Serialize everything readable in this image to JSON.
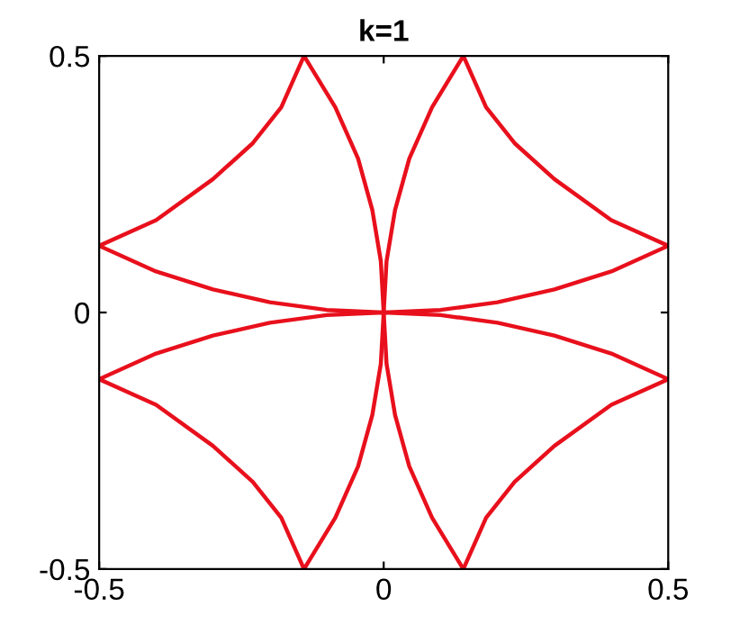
{
  "chart_data": {
    "type": "line",
    "title": "k=1",
    "xlim": [
      -0.5,
      0.5
    ],
    "ylim": [
      -0.5,
      0.5
    ],
    "xticks": [
      -0.5,
      0,
      0.5
    ],
    "yticks": [
      -0.5,
      0,
      0.5
    ],
    "grid": false,
    "legend": false,
    "marker": "none",
    "line_style": "solid",
    "series": [
      {
        "color": "#e8101c",
        "x": [
          0.5,
          0.4,
          0.3,
          0.23,
          0.18,
          0.14,
          0.085,
          0.045,
          0.02,
          0.005,
          0,
          0.005,
          0.02,
          0.045,
          0.085,
          0.14,
          0.18,
          0.23,
          0.3,
          0.4,
          0.5
        ],
        "values": [
          -0.13,
          -0.18,
          -0.26,
          -0.33,
          -0.4,
          -0.5,
          -0.4,
          -0.3,
          -0.2,
          -0.1,
          0,
          0.1,
          0.2,
          0.3,
          0.4,
          0.5,
          0.4,
          0.33,
          0.26,
          0.18,
          0.13
        ]
      },
      {
        "color": "#e8101c",
        "x": [
          -0.5,
          -0.4,
          -0.3,
          -0.23,
          -0.18,
          -0.14,
          -0.085,
          -0.045,
          -0.02,
          -0.005,
          0,
          -0.005,
          -0.02,
          -0.045,
          -0.085,
          -0.14,
          -0.18,
          -0.23,
          -0.3,
          -0.4,
          -0.5
        ],
        "values": [
          -0.13,
          -0.18,
          -0.26,
          -0.33,
          -0.4,
          -0.5,
          -0.4,
          -0.3,
          -0.2,
          -0.1,
          0,
          0.1,
          0.2,
          0.3,
          0.4,
          0.5,
          0.4,
          0.33,
          0.26,
          0.18,
          0.13
        ]
      },
      {
        "color": "#e8101c",
        "x": [
          -0.5,
          -0.4,
          -0.3,
          -0.2,
          -0.1,
          0,
          0.1,
          0.2,
          0.3,
          0.4,
          0.5
        ],
        "values": [
          0.13,
          0.08,
          0.045,
          0.02,
          0.005,
          0,
          0.005,
          0.02,
          0.045,
          0.08,
          0.13
        ]
      },
      {
        "color": "#e8101c",
        "x": [
          -0.5,
          -0.4,
          -0.3,
          -0.2,
          -0.1,
          0,
          0.1,
          0.2,
          0.3,
          0.4,
          0.5
        ],
        "values": [
          -0.13,
          -0.08,
          -0.045,
          -0.02,
          -0.005,
          0,
          -0.005,
          -0.02,
          -0.045,
          -0.08,
          -0.13
        ]
      }
    ]
  }
}
